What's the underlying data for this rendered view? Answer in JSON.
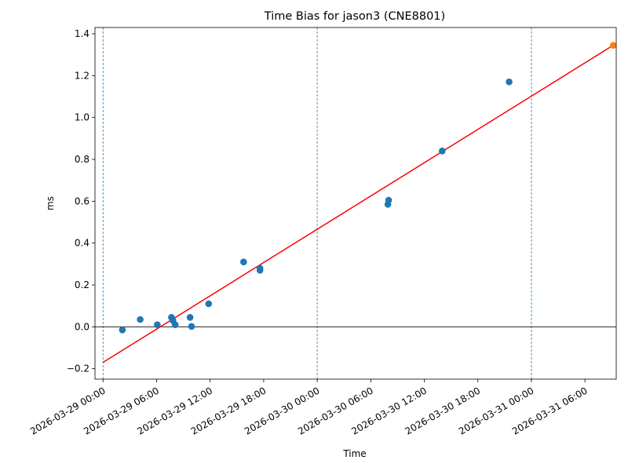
{
  "chart_data": {
    "type": "scatter",
    "title": "Time Bias for jason3 (CNE8801)",
    "xlabel": "Time",
    "ylabel": "ms",
    "x_axis": {
      "start": "2026-03-29 00:00",
      "end": "2026-03-31 09:00",
      "range_hours": [
        -0.9,
        57.5
      ],
      "tick_hours": [
        0,
        6,
        12,
        18,
        24,
        30,
        36,
        42,
        48,
        54
      ],
      "tick_labels": [
        "2026-03-29 00:00",
        "2026-03-29 06:00",
        "2026-03-29 12:00",
        "2026-03-29 18:00",
        "2026-03-30 00:00",
        "2026-03-30 06:00",
        "2026-03-30 12:00",
        "2026-03-30 18:00",
        "2026-03-31 00:00",
        "2026-03-31 06:00"
      ]
    },
    "ylim": [
      -0.25,
      1.43
    ],
    "yticks": [
      -0.2,
      0.0,
      0.2,
      0.4,
      0.6,
      0.8,
      1.0,
      1.2,
      1.4
    ],
    "ytick_labels": [
      "−0.2",
      "0.0",
      "0.2",
      "0.4",
      "0.6",
      "0.8",
      "1.0",
      "1.2",
      "1.4"
    ],
    "day_boundaries_hours": [
      0,
      24,
      48
    ],
    "zero_line": 0,
    "series": [
      {
        "color": "#1f77b4",
        "points": [
          {
            "x": "2026-03-29 02:10",
            "y": -0.015
          },
          {
            "x": "2026-03-29 04:10",
            "y": 0.035
          },
          {
            "x": "2026-03-29 06:05",
            "y": 0.01
          },
          {
            "x": "2026-03-29 07:40",
            "y": 0.045
          },
          {
            "x": "2026-03-29 07:50",
            "y": 0.03
          },
          {
            "x": "2026-03-29 08:05",
            "y": 0.01
          },
          {
            "x": "2026-03-29 09:45",
            "y": 0.045
          },
          {
            "x": "2026-03-29 09:55",
            "y": 0.002
          },
          {
            "x": "2026-03-29 11:50",
            "y": 0.11
          },
          {
            "x": "2026-03-29 15:45",
            "y": 0.31
          },
          {
            "x": "2026-03-29 17:35",
            "y": 0.28
          },
          {
            "x": "2026-03-29 17:35",
            "y": 0.27
          },
          {
            "x": "2026-03-30 07:55",
            "y": 0.585
          },
          {
            "x": "2026-03-30 08:00",
            "y": 0.605
          },
          {
            "x": "2026-03-30 14:00",
            "y": 0.84
          },
          {
            "x": "2026-03-30 21:30",
            "y": 1.17
          }
        ]
      },
      {
        "color": "#ff7f0e",
        "points": [
          {
            "x": "2026-03-31 09:10",
            "y": 1.345
          }
        ]
      }
    ],
    "fit_line": {
      "color": "#ff0000",
      "points": [
        {
          "x": "2026-03-29 00:00",
          "y": -0.17
        },
        {
          "x": "2026-03-31 09:10",
          "y": 1.345
        }
      ]
    }
  }
}
